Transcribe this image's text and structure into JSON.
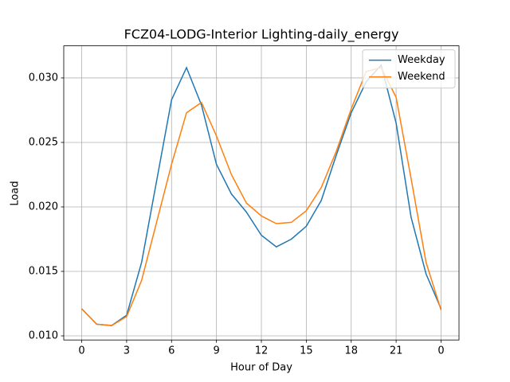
{
  "chart_data": {
    "type": "line",
    "title": "FCZ04-LODG-Interior Lighting-daily_energy",
    "x_label": "Hour of Day",
    "y_label": "Load",
    "x": [
      0,
      1,
      2,
      3,
      4,
      5,
      6,
      7,
      8,
      9,
      10,
      11,
      12,
      13,
      14,
      15,
      16,
      17,
      18,
      19,
      20,
      21,
      22,
      23,
      24
    ],
    "series": [
      {
        "name": "Weekday",
        "color": "#1f77b4",
        "values": [
          0.0121,
          0.0109,
          0.0108,
          0.0116,
          0.0157,
          0.022,
          0.0283,
          0.0308,
          0.0279,
          0.0233,
          0.021,
          0.0196,
          0.0178,
          0.0169,
          0.0175,
          0.0185,
          0.0205,
          0.024,
          0.0273,
          0.0297,
          0.031,
          0.0265,
          0.0192,
          0.0148,
          0.0121
        ]
      },
      {
        "name": "Weekend",
        "color": "#ff7f0e",
        "values": [
          0.0121,
          0.0109,
          0.0108,
          0.0115,
          0.0143,
          0.0188,
          0.0233,
          0.0273,
          0.0281,
          0.0255,
          0.0225,
          0.0203,
          0.0193,
          0.0187,
          0.0188,
          0.0197,
          0.0215,
          0.0243,
          0.0276,
          0.0305,
          0.0308,
          0.0285,
          0.0222,
          0.0157,
          0.012
        ]
      }
    ],
    "xlim": [
      -1.2,
      25.2
    ],
    "xticks": [
      0,
      3,
      6,
      9,
      12,
      15,
      18,
      21,
      {
        "value": 24,
        "label": "0"
      }
    ],
    "ylim": [
      0.00968,
      0.03249
    ],
    "yticks": [
      {
        "value": 0.01,
        "label": "0.010"
      },
      0.015,
      {
        "value": 0.02,
        "label": "0.020"
      },
      0.025,
      {
        "value": 0.03,
        "label": "0.030"
      }
    ],
    "grid": true,
    "legend": "upper right"
  }
}
